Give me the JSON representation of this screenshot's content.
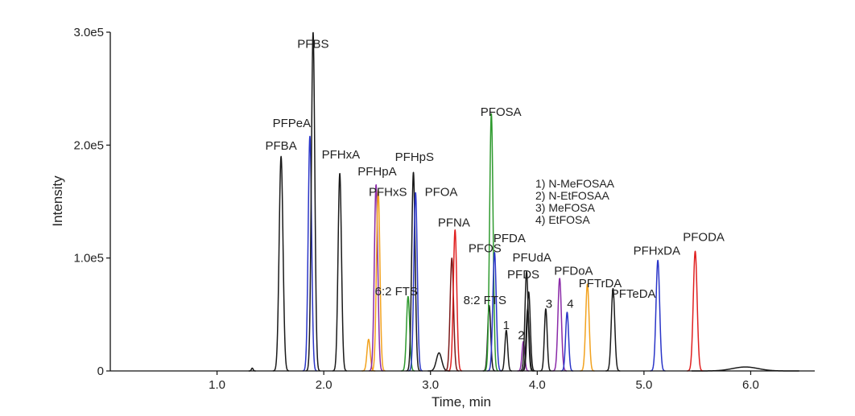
{
  "chart_data": {
    "type": "line",
    "title": "",
    "xlabel": "Time, min",
    "ylabel": "Intensity",
    "xlim": [
      0,
      6.6
    ],
    "ylim": [
      0,
      300000
    ],
    "x_ticks": [
      {
        "value": 1.0,
        "label": "1.0"
      },
      {
        "value": 2.0,
        "label": "2.0"
      },
      {
        "value": 3.0,
        "label": "3.0"
      },
      {
        "value": 4.0,
        "label": "4.0"
      },
      {
        "value": 5.0,
        "label": "5.0"
      },
      {
        "value": 6.0,
        "label": "6.0"
      }
    ],
    "y_ticks": [
      {
        "value": 0,
        "label": "0"
      },
      {
        "value": 100000,
        "label": "1.0e5"
      },
      {
        "value": 200000,
        "label": "2.0e5"
      },
      {
        "value": 300000,
        "label": "3.0e5"
      }
    ],
    "grid": false,
    "colors": {
      "black": "#1a1a1a",
      "blue": "#2a35c8",
      "red": "#e02020",
      "green": "#2e9a2e",
      "orange": "#f2a21e",
      "purple": "#8a2aa8",
      "darkred": "#7a1818"
    },
    "peaks": [
      {
        "label": "PFBA",
        "rt": 1.6,
        "height": 190000,
        "width": 0.018,
        "color": "black"
      },
      {
        "label": "PFPeA",
        "rt": 1.87,
        "height": 208000,
        "width": 0.016,
        "color": "blue"
      },
      {
        "label": "PFBS",
        "rt": 1.9,
        "height": 300000,
        "width": 0.016,
        "color": "black"
      },
      {
        "label": "PFHxA",
        "rt": 2.15,
        "height": 175000,
        "width": 0.016,
        "color": "black"
      },
      {
        "label": "",
        "rt": 2.42,
        "height": 28000,
        "width": 0.015,
        "color": "orange"
      },
      {
        "label": "PFHpA",
        "rt": 2.49,
        "height": 165000,
        "width": 0.016,
        "color": "purple"
      },
      {
        "label": "",
        "rt": 2.51,
        "height": 160000,
        "width": 0.016,
        "color": "orange"
      },
      {
        "label": "6:2 FTS",
        "rt": 2.79,
        "height": 66000,
        "width": 0.015,
        "color": "green"
      },
      {
        "label": "PFHpS",
        "rt": 2.84,
        "height": 176000,
        "width": 0.016,
        "color": "black"
      },
      {
        "label": "PFHxS",
        "rt": 2.86,
        "height": 158000,
        "width": 0.016,
        "color": "blue"
      },
      {
        "label": "",
        "rt": 3.08,
        "height": 16000,
        "width": 0.025,
        "color": "black"
      },
      {
        "label": "PFOA",
        "rt": 3.2,
        "height": 100000,
        "width": 0.016,
        "color": "darkred"
      },
      {
        "label": "PFNA",
        "rt": 3.23,
        "height": 125000,
        "width": 0.016,
        "color": "red"
      },
      {
        "label": "8:2 FTS",
        "rt": 3.55,
        "height": 58000,
        "width": 0.014,
        "color": "black"
      },
      {
        "label": "PFOSA",
        "rt": 3.57,
        "height": 228000,
        "width": 0.016,
        "color": "green"
      },
      {
        "label": "PFOS",
        "rt": 3.6,
        "height": 105000,
        "width": 0.016,
        "color": "blue"
      },
      {
        "label": "1",
        "rt": 3.71,
        "height": 36000,
        "width": 0.013,
        "color": "black"
      },
      {
        "label": "2",
        "rt": 3.87,
        "height": 26000,
        "width": 0.013,
        "color": "purple"
      },
      {
        "label": "PFDA",
        "rt": 3.9,
        "height": 88000,
        "width": 0.015,
        "color": "black"
      },
      {
        "label": "PFUdA",
        "rt": 3.92,
        "height": 70000,
        "width": 0.015,
        "color": "black"
      },
      {
        "label": "PFDS",
        "rt": 3.91,
        "height": 55000,
        "width": 0.014,
        "color": "black"
      },
      {
        "label": "3",
        "rt": 4.08,
        "height": 55000,
        "width": 0.013,
        "color": "black"
      },
      {
        "label": "PFDoA",
        "rt": 4.21,
        "height": 82000,
        "width": 0.016,
        "color": "purple"
      },
      {
        "label": "4",
        "rt": 4.28,
        "height": 52000,
        "width": 0.014,
        "color": "blue"
      },
      {
        "label": "PFTrDA",
        "rt": 4.47,
        "height": 77000,
        "width": 0.016,
        "color": "orange"
      },
      {
        "label": "PFTeDA",
        "rt": 4.71,
        "height": 73000,
        "width": 0.016,
        "color": "black"
      },
      {
        "label": "PFHxDA",
        "rt": 5.13,
        "height": 98000,
        "width": 0.017,
        "color": "blue"
      },
      {
        "label": "PFODA",
        "rt": 5.48,
        "height": 106000,
        "width": 0.018,
        "color": "red"
      }
    ],
    "annotations": [
      {
        "text": "PFBS",
        "x": 1.9,
        "y": 286000,
        "anchor": "middle"
      },
      {
        "text": "PFPeA",
        "x": 1.7,
        "y": 216000,
        "anchor": "middle"
      },
      {
        "text": "PFBA",
        "x": 1.6,
        "y": 196000,
        "anchor": "middle"
      },
      {
        "text": "PFHxA",
        "x": 2.16,
        "y": 188000,
        "anchor": "middle"
      },
      {
        "text": "PFHpS",
        "x": 2.85,
        "y": 186000,
        "anchor": "middle"
      },
      {
        "text": "PFHpA",
        "x": 2.5,
        "y": 173000,
        "anchor": "middle"
      },
      {
        "text": "PFHxS",
        "x": 2.6,
        "y": 155000,
        "anchor": "middle"
      },
      {
        "text": "PFOA",
        "x": 3.1,
        "y": 155000,
        "anchor": "middle"
      },
      {
        "text": "PFOSA",
        "x": 3.66,
        "y": 226000,
        "anchor": "middle"
      },
      {
        "text": "PFNA",
        "x": 3.22,
        "y": 128000,
        "anchor": "middle"
      },
      {
        "text": "PFOS",
        "x": 3.51,
        "y": 105000,
        "anchor": "middle"
      },
      {
        "text": "PFDA",
        "x": 3.74,
        "y": 114000,
        "anchor": "middle"
      },
      {
        "text": "PFUdA",
        "x": 3.95,
        "y": 97000,
        "anchor": "middle"
      },
      {
        "text": "PFDS",
        "x": 3.87,
        "y": 82000,
        "anchor": "middle"
      },
      {
        "text": "PFDoA",
        "x": 4.34,
        "y": 85000,
        "anchor": "middle"
      },
      {
        "text": "PFTrDA",
        "x": 4.59,
        "y": 74000,
        "anchor": "middle"
      },
      {
        "text": "PFTeDA",
        "x": 4.9,
        "y": 65000,
        "anchor": "middle"
      },
      {
        "text": "PFHxDA",
        "x": 5.12,
        "y": 103000,
        "anchor": "middle"
      },
      {
        "text": "PFODA",
        "x": 5.56,
        "y": 115000,
        "anchor": "middle"
      },
      {
        "text": "6:2 FTS",
        "x": 2.68,
        "y": 67000,
        "anchor": "middle"
      },
      {
        "text": "8:2 FTS",
        "x": 3.51,
        "y": 59000,
        "anchor": "middle"
      },
      {
        "text": "1",
        "x": 3.71,
        "y": 37000,
        "anchor": "middle"
      },
      {
        "text": "2",
        "x": 3.85,
        "y": 28000,
        "anchor": "middle"
      },
      {
        "text": "3",
        "x": 4.11,
        "y": 56000,
        "anchor": "middle"
      },
      {
        "text": "4",
        "x": 4.31,
        "y": 56000,
        "anchor": "middle"
      }
    ],
    "legend_title_lines": [
      "1) N-MeFOSAA",
      "2) N-EtFOSAA",
      "3) MeFOSA",
      "4) EtFOSA"
    ],
    "baseline_bumps": [
      {
        "x": 1.33,
        "height": 2500,
        "width": 0.008,
        "color": "black"
      },
      {
        "x": 5.95,
        "height": 3500,
        "width": 0.12,
        "color": "black"
      }
    ]
  }
}
